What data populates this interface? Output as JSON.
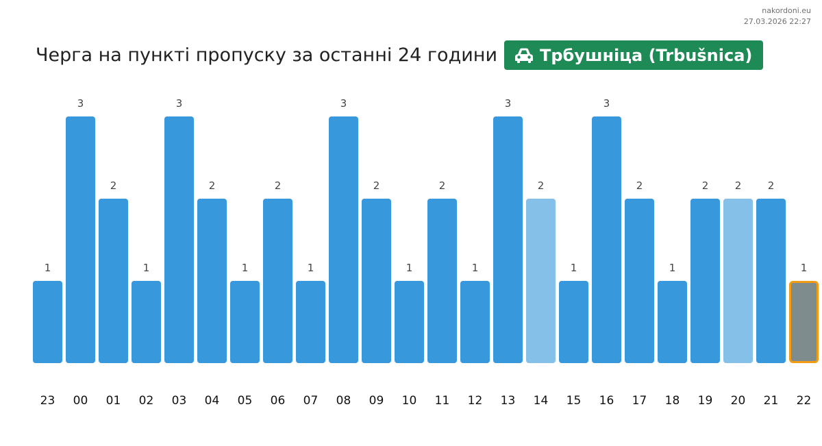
{
  "site": {
    "domain": "nakordoni.eu",
    "timestamp": "27.03.2026 22:27"
  },
  "header": {
    "title": "Черга на пункті пропуску за останні 24 години",
    "checkpoint": "Трбушніца (Trbušnica)",
    "checkpoint_icon": "car-icon",
    "badge_color": "#1e8a55"
  },
  "chart_data": {
    "type": "bar",
    "categories": [
      "23",
      "00",
      "01",
      "02",
      "03",
      "04",
      "05",
      "06",
      "07",
      "08",
      "09",
      "10",
      "11",
      "12",
      "13",
      "14",
      "15",
      "16",
      "17",
      "18",
      "19",
      "20",
      "21",
      "22"
    ],
    "values": [
      1,
      3,
      2,
      1,
      3,
      2,
      1,
      2,
      1,
      3,
      2,
      1,
      2,
      1,
      3,
      2,
      1,
      3,
      2,
      1,
      2,
      2,
      2,
      1
    ],
    "ylim": [
      0,
      3
    ],
    "bar_color": "#3798db",
    "light_bar_color": "#85c0e8",
    "light_bars": [
      "14",
      "20"
    ],
    "current_bar": "22",
    "current_bar_color": "#7f8c8d",
    "current_bar_outline": "#f39c12"
  }
}
